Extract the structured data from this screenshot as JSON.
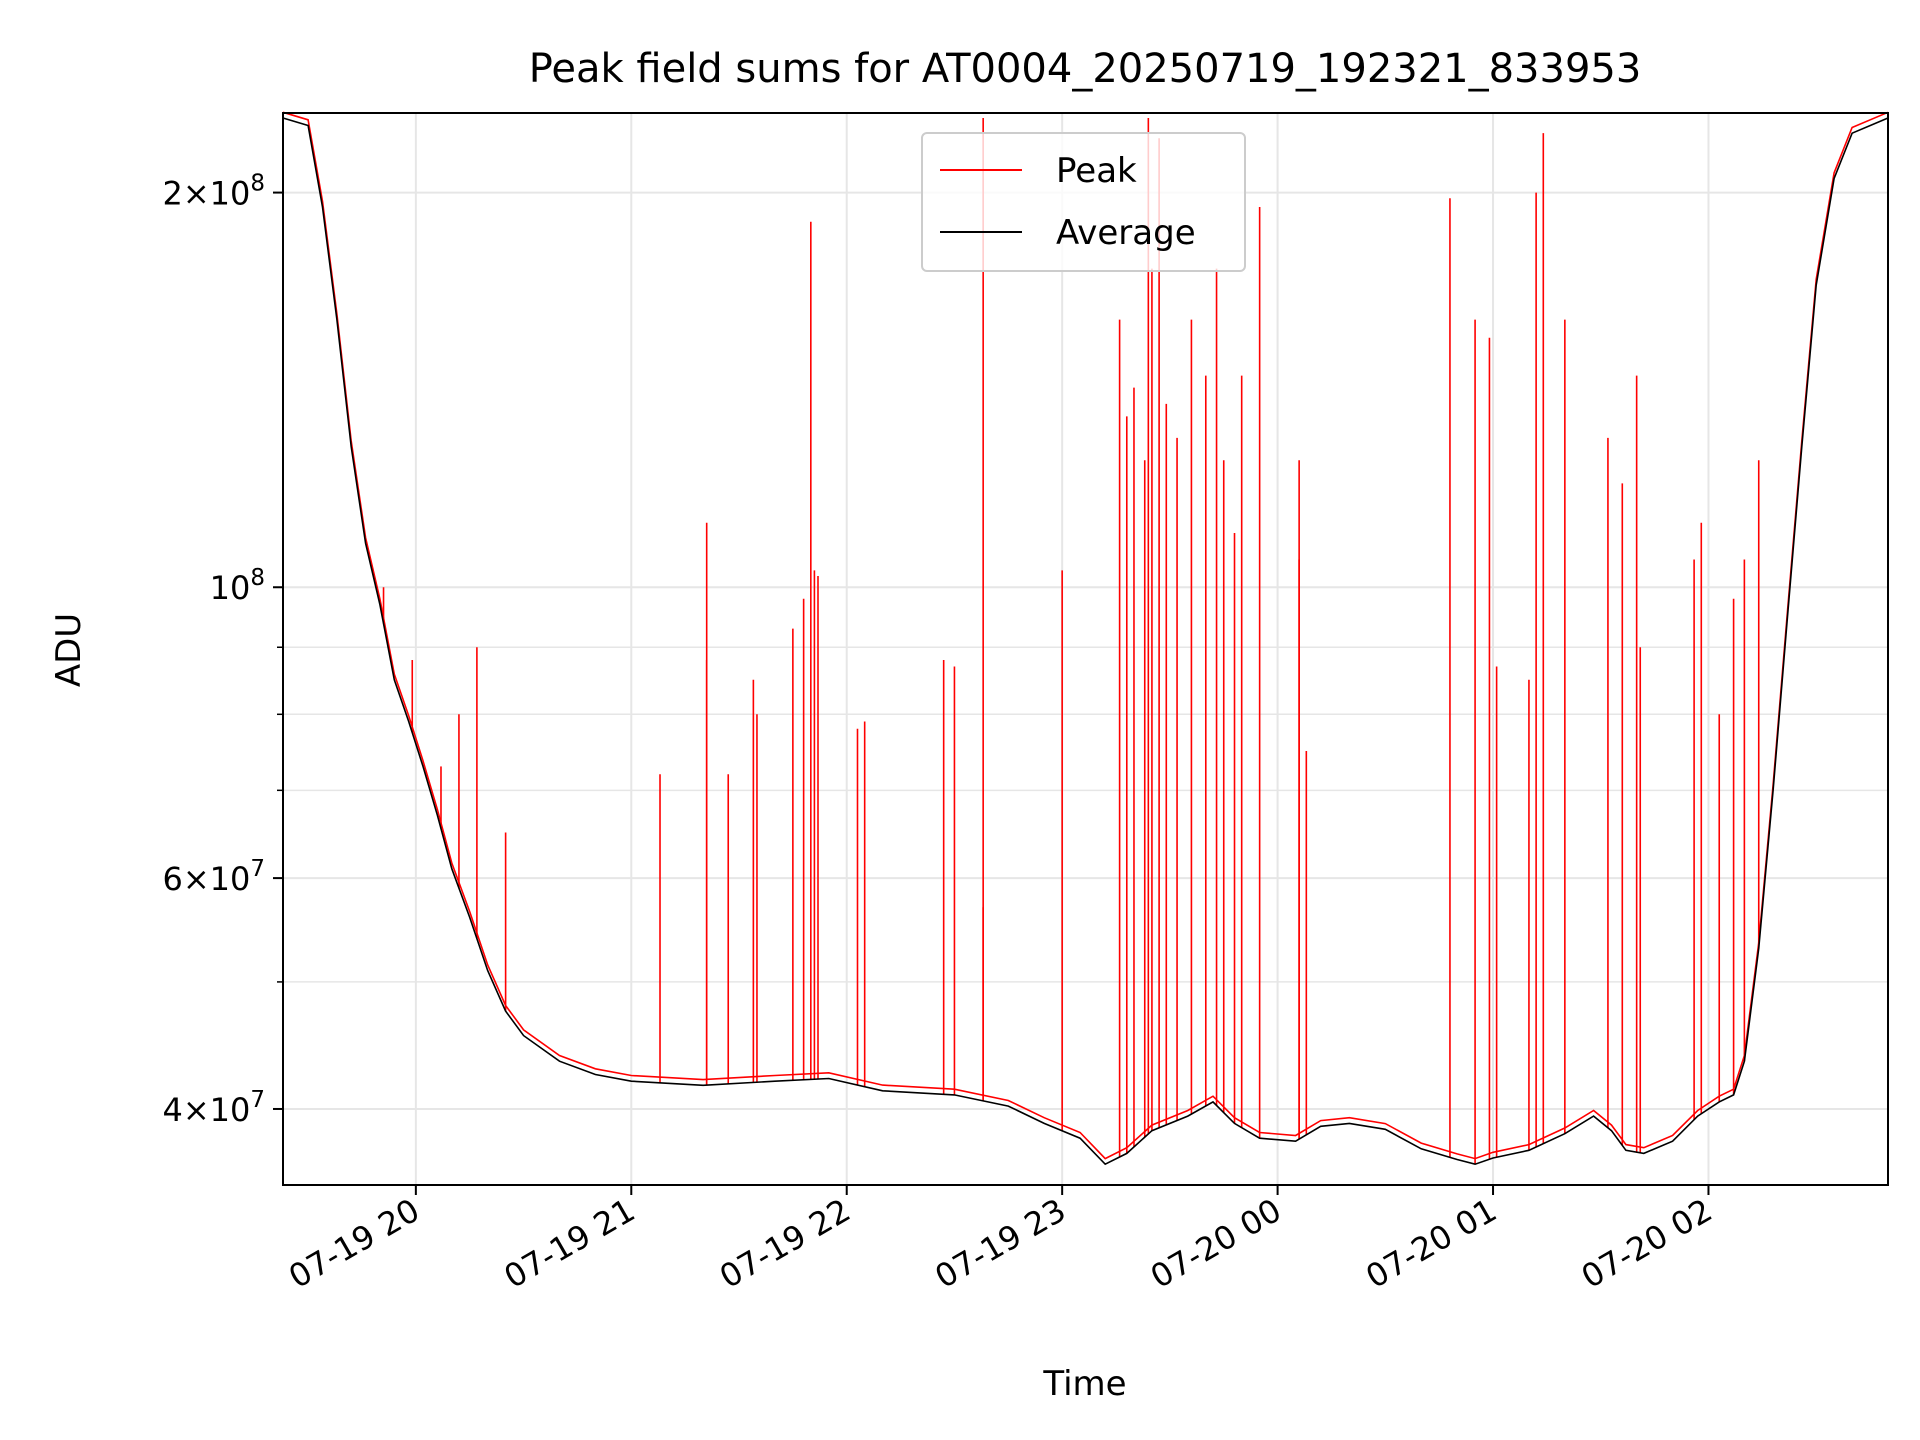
{
  "chart_data": {
    "type": "line",
    "title": "Peak field sums for AT0004_20250719_192321_833953",
    "xlabel": "Time",
    "ylabel": "ADU",
    "y_scale": "log",
    "ylim": [
      35000000,
      230000000
    ],
    "xlim": [
      "2025-07-19 19:23",
      "2025-07-20 02:50"
    ],
    "grid": true,
    "legend_position": "upper center",
    "x_ticks": [
      {
        "x": "2025-07-19 20:00",
        "label": "07-19 20"
      },
      {
        "x": "2025-07-19 21:00",
        "label": "07-19 21"
      },
      {
        "x": "2025-07-19 22:00",
        "label": "07-19 22"
      },
      {
        "x": "2025-07-19 23:00",
        "label": "07-19 23"
      },
      {
        "x": "2025-07-20 00:00",
        "label": "07-20 00"
      },
      {
        "x": "2025-07-20 01:00",
        "label": "07-20 01"
      },
      {
        "x": "2025-07-20 02:00",
        "label": "07-20 02"
      }
    ],
    "y_ticks": [
      {
        "y": 40000000,
        "base": "4",
        "exp": "7"
      },
      {
        "y": 60000000,
        "base": "6",
        "exp": "7"
      },
      {
        "y": 100000000,
        "base": "",
        "exp": "8"
      },
      {
        "y": 200000000,
        "base": "2",
        "exp": "8"
      }
    ],
    "y_minor_ticks": [
      50000000,
      70000000,
      80000000,
      90000000
    ],
    "series": [
      {
        "name": "Average",
        "color": "#000000",
        "points": [
          [
            "2025-07-19 19:23",
            228000000.0
          ],
          [
            "2025-07-19 19:30",
            225000000.0
          ],
          [
            "2025-07-19 19:34",
            195000000.0
          ],
          [
            "2025-07-19 19:38",
            160000000.0
          ],
          [
            "2025-07-19 19:42",
            128000000.0
          ],
          [
            "2025-07-19 19:46",
            108000000.0
          ],
          [
            "2025-07-19 19:50",
            97000000.0
          ],
          [
            "2025-07-19 19:54",
            85000000.0
          ],
          [
            "2025-07-19 19:58",
            79000000.0
          ],
          [
            "2025-07-19 20:02",
            73000000.0
          ],
          [
            "2025-07-19 20:06",
            67000000.0
          ],
          [
            "2025-07-19 20:10",
            61000000.0
          ],
          [
            "2025-07-19 20:15",
            56000000.0
          ],
          [
            "2025-07-19 20:20",
            51000000.0
          ],
          [
            "2025-07-19 20:25",
            47500000.0
          ],
          [
            "2025-07-19 20:30",
            45500000.0
          ],
          [
            "2025-07-19 20:40",
            43500000.0
          ],
          [
            "2025-07-19 20:50",
            42500000.0
          ],
          [
            "2025-07-19 21:00",
            42000000.0
          ],
          [
            "2025-07-19 21:20",
            41700000.0
          ],
          [
            "2025-07-19 21:40",
            42000000.0
          ],
          [
            "2025-07-19 21:55",
            42200000.0
          ],
          [
            "2025-07-19 22:10",
            41300000.0
          ],
          [
            "2025-07-19 22:30",
            41000000.0
          ],
          [
            "2025-07-19 22:45",
            40200000.0
          ],
          [
            "2025-07-19 22:55",
            39000000.0
          ],
          [
            "2025-07-19 23:05",
            38000000.0
          ],
          [
            "2025-07-19 23:12",
            36300000.0
          ],
          [
            "2025-07-19 23:18",
            37000000.0
          ],
          [
            "2025-07-19 23:25",
            38500000.0
          ],
          [
            "2025-07-19 23:35",
            39500000.0
          ],
          [
            "2025-07-19 23:42",
            40500000.0
          ],
          [
            "2025-07-19 23:48",
            39000000.0
          ],
          [
            "2025-07-19 23:55",
            38000000.0
          ],
          [
            "2025-07-20 00:05",
            37800000.0
          ],
          [
            "2025-07-20 00:12",
            38800000.0
          ],
          [
            "2025-07-20 00:20",
            39000000.0
          ],
          [
            "2025-07-20 00:30",
            38600000.0
          ],
          [
            "2025-07-20 00:40",
            37300000.0
          ],
          [
            "2025-07-20 00:50",
            36600000.0
          ],
          [
            "2025-07-20 00:55",
            36300000.0
          ],
          [
            "2025-07-20 01:00",
            36700000.0
          ],
          [
            "2025-07-20 01:10",
            37200000.0
          ],
          [
            "2025-07-20 01:20",
            38300000.0
          ],
          [
            "2025-07-20 01:28",
            39500000.0
          ],
          [
            "2025-07-20 01:33",
            38500000.0
          ],
          [
            "2025-07-20 01:37",
            37200000.0
          ],
          [
            "2025-07-20 01:42",
            37000000.0
          ],
          [
            "2025-07-20 01:50",
            37800000.0
          ],
          [
            "2025-07-20 01:57",
            39500000.0
          ],
          [
            "2025-07-20 02:03",
            40500000.0
          ],
          [
            "2025-07-20 02:07",
            41000000.0
          ],
          [
            "2025-07-20 02:10",
            43500000.0
          ],
          [
            "2025-07-20 02:14",
            53000000.0
          ],
          [
            "2025-07-20 02:18",
            70000000.0
          ],
          [
            "2025-07-20 02:22",
            95000000.0
          ],
          [
            "2025-07-20 02:26",
            128000000.0
          ],
          [
            "2025-07-20 02:30",
            170000000.0
          ],
          [
            "2025-07-20 02:35",
            205000000.0
          ],
          [
            "2025-07-20 02:40",
            222000000.0
          ],
          [
            "2025-07-20 02:50",
            228000000.0
          ]
        ]
      },
      {
        "name": "Peak",
        "color": "#ff0000",
        "spikes": [
          [
            "2025-07-19 19:51",
            100000000.0
          ],
          [
            "2025-07-19 19:59",
            88000000.0
          ],
          [
            "2025-07-19 20:07",
            73000000.0
          ],
          [
            "2025-07-19 20:12",
            80000000.0
          ],
          [
            "2025-07-19 20:17",
            90000000.0
          ],
          [
            "2025-07-19 20:25",
            65000000.0
          ],
          [
            "2025-07-19 21:08",
            72000000.0
          ],
          [
            "2025-07-19 21:21",
            88000000.0
          ],
          [
            "2025-07-19 21:21",
            112000000.0
          ],
          [
            "2025-07-19 21:27",
            72000000.0
          ],
          [
            "2025-07-19 21:34",
            85000000.0
          ],
          [
            "2025-07-19 21:35",
            80000000.0
          ],
          [
            "2025-07-19 21:45",
            93000000.0
          ],
          [
            "2025-07-19 21:48",
            98000000.0
          ],
          [
            "2025-07-19 21:50",
            190000000.0
          ],
          [
            "2025-07-19 21:51",
            103000000.0
          ],
          [
            "2025-07-19 21:52",
            102000000.0
          ],
          [
            "2025-07-19 22:03",
            78000000.0
          ],
          [
            "2025-07-19 22:05",
            79000000.0
          ],
          [
            "2025-07-19 22:27",
            88000000.0
          ],
          [
            "2025-07-19 22:30",
            87000000.0
          ],
          [
            "2025-07-19 22:38",
            57000000.0
          ],
          [
            "2025-07-19 22:38",
            228000000.0
          ],
          [
            "2025-07-19 23:00",
            103000000.0
          ],
          [
            "2025-07-19 23:16",
            160000000.0
          ],
          [
            "2025-07-19 23:18",
            135000000.0
          ],
          [
            "2025-07-19 23:20",
            142000000.0
          ],
          [
            "2025-07-19 23:23",
            125000000.0
          ],
          [
            "2025-07-19 23:24",
            228000000.0
          ],
          [
            "2025-07-19 23:25",
            175000000.0
          ],
          [
            "2025-07-19 23:27",
            220000000.0
          ],
          [
            "2025-07-19 23:29",
            138000000.0
          ],
          [
            "2025-07-19 23:32",
            130000000.0
          ],
          [
            "2025-07-19 23:36",
            160000000.0
          ],
          [
            "2025-07-19 23:40",
            145000000.0
          ],
          [
            "2025-07-19 23:43",
            175000000.0
          ],
          [
            "2025-07-19 23:45",
            125000000.0
          ],
          [
            "2025-07-19 23:48",
            110000000.0
          ],
          [
            "2025-07-19 23:50",
            145000000.0
          ],
          [
            "2025-07-19 23:55",
            195000000.0
          ],
          [
            "2025-07-20 00:06",
            125000000.0
          ],
          [
            "2025-07-20 00:08",
            75000000.0
          ],
          [
            "2025-07-20 00:06",
            105000000.0
          ],
          [
            "2025-07-20 00:48",
            198000000.0
          ],
          [
            "2025-07-20 00:55",
            160000000.0
          ],
          [
            "2025-07-20 00:59",
            155000000.0
          ],
          [
            "2025-07-20 01:01",
            87000000.0
          ],
          [
            "2025-07-20 01:10",
            85000000.0
          ],
          [
            "2025-07-20 01:12",
            200000000.0
          ],
          [
            "2025-07-20 01:14",
            222000000.0
          ],
          [
            "2025-07-20 01:20",
            160000000.0
          ],
          [
            "2025-07-20 01:32",
            130000000.0
          ],
          [
            "2025-07-20 01:36",
            120000000.0
          ],
          [
            "2025-07-20 01:40",
            145000000.0
          ],
          [
            "2025-07-20 01:41",
            90000000.0
          ],
          [
            "2025-07-20 01:56",
            105000000.0
          ],
          [
            "2025-07-20 01:58",
            112000000.0
          ],
          [
            "2025-07-20 02:03",
            80000000.0
          ],
          [
            "2025-07-20 02:07",
            98000000.0
          ],
          [
            "2025-07-20 02:10",
            105000000.0
          ],
          [
            "2025-07-20 02:14",
            125000000.0
          ]
        ]
      }
    ]
  }
}
